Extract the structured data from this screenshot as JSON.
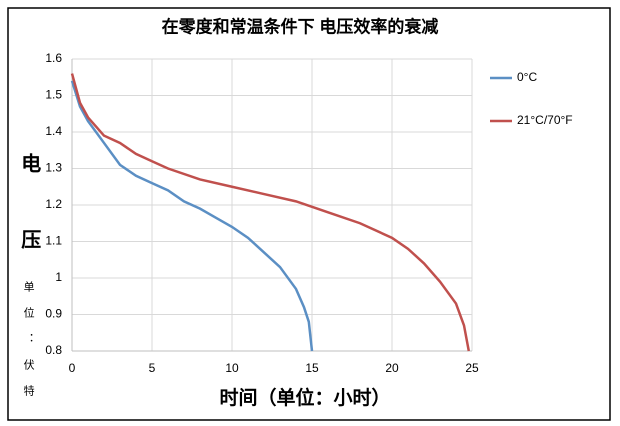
{
  "chart_data": {
    "type": "line",
    "title": "在零度和常温条件下 电压效率的衰减",
    "ylabel": "电压",
    "ylabel_unit": "单位：伏特",
    "xlabel": "时间（单位：小时）",
    "xlim": [
      0,
      25
    ],
    "xticks": [
      0,
      5,
      10,
      15,
      20,
      25
    ],
    "ylim": [
      0.8,
      1.6
    ],
    "yticks": [
      0.8,
      0.9,
      1,
      1.1,
      1.2,
      1.3,
      1.4,
      1.5,
      1.6
    ],
    "grid": true,
    "legend": "right",
    "series": [
      {
        "name": "0°C",
        "color": "#5b8fc4",
        "x": [
          0,
          0.5,
          1,
          2,
          3,
          4,
          5,
          6,
          7,
          8,
          9,
          10,
          11,
          12,
          13,
          14,
          14.5,
          14.8,
          15
        ],
        "values": [
          1.54,
          1.47,
          1.43,
          1.37,
          1.31,
          1.28,
          1.26,
          1.24,
          1.21,
          1.19,
          1.165,
          1.14,
          1.11,
          1.07,
          1.03,
          0.97,
          0.92,
          0.88,
          0.8
        ]
      },
      {
        "name": "21°C/70°F",
        "color": "#c0504d",
        "x": [
          0,
          0.5,
          1,
          2,
          3,
          4,
          5,
          6,
          8,
          10,
          12,
          14,
          15,
          16,
          18,
          20,
          21,
          22,
          23,
          24,
          24.5,
          24.8
        ],
        "values": [
          1.56,
          1.48,
          1.44,
          1.39,
          1.37,
          1.34,
          1.32,
          1.3,
          1.27,
          1.25,
          1.23,
          1.21,
          1.195,
          1.18,
          1.15,
          1.11,
          1.08,
          1.04,
          0.99,
          0.93,
          0.87,
          0.8
        ]
      }
    ]
  }
}
